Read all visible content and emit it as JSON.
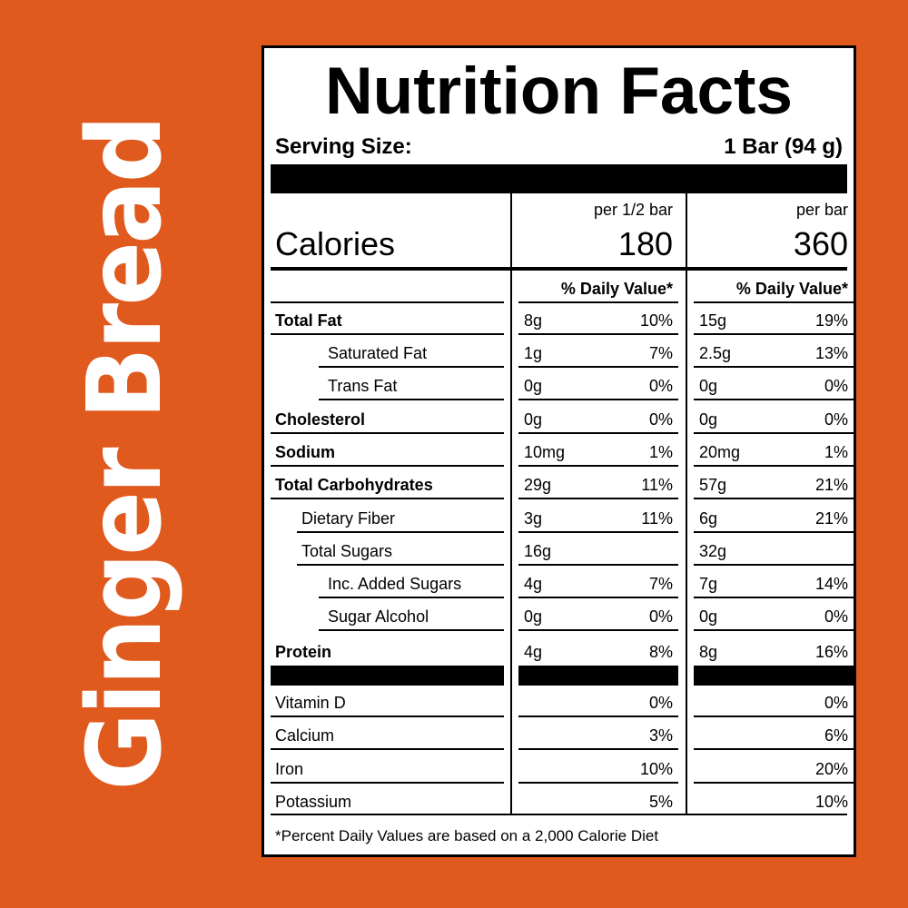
{
  "product_name": "Ginger Bread",
  "colors": {
    "background": "#E0591D",
    "brand_text": "#FFFFFF"
  },
  "label": {
    "title": "Nutrition Facts",
    "serving_label": "Serving Size:",
    "serving_value": "1 Bar (94 g)",
    "calories_label": "Calories",
    "col1_caption": "per 1/2 bar",
    "col2_caption": "per bar",
    "col1_calories": "180",
    "col2_calories": "360",
    "dv_header": "% Daily Value*",
    "rows": [
      {
        "name": "Total Fat",
        "a_amt": "8g",
        "a_dv": "10%",
        "b_amt": "15g",
        "b_dv": "19%"
      },
      {
        "name": "Saturated Fat",
        "a_amt": "1g",
        "a_dv": "7%",
        "b_amt": "2.5g",
        "b_dv": "13%"
      },
      {
        "name": "Trans Fat",
        "a_amt": "0g",
        "a_dv": "0%",
        "b_amt": "0g",
        "b_dv": "0%"
      },
      {
        "name": "Cholesterol",
        "a_amt": "0g",
        "a_dv": "0%",
        "b_amt": "0g",
        "b_dv": "0%"
      },
      {
        "name": "Sodium",
        "a_amt": "10mg",
        "a_dv": "1%",
        "b_amt": "20mg",
        "b_dv": "1%"
      },
      {
        "name": "Total Carbohydrates",
        "a_amt": "29g",
        "a_dv": "11%",
        "b_amt": "57g",
        "b_dv": "21%"
      },
      {
        "name": "Dietary Fiber",
        "a_amt": "3g",
        "a_dv": "11%",
        "b_amt": "6g",
        "b_dv": "21%"
      },
      {
        "name": "Total Sugars",
        "a_amt": "16g",
        "a_dv": "",
        "b_amt": "32g",
        "b_dv": ""
      },
      {
        "name": "Inc. Added Sugars",
        "a_amt": "4g",
        "a_dv": "7%",
        "b_amt": "7g",
        "b_dv": "14%"
      },
      {
        "name": "Sugar Alcohol",
        "a_amt": "0g",
        "a_dv": "0%",
        "b_amt": "0g",
        "b_dv": "0%"
      },
      {
        "name": "Protein",
        "a_amt": "4g",
        "a_dv": "8%",
        "b_amt": "8g",
        "b_dv": "16%"
      }
    ],
    "vitamins": [
      {
        "name": "Vitamin D",
        "a_dv": "0%",
        "b_dv": "0%"
      },
      {
        "name": "Calcium",
        "a_dv": "3%",
        "b_dv": "6%"
      },
      {
        "name": "Iron",
        "a_dv": "10%",
        "b_dv": "20%"
      },
      {
        "name": "Potassium",
        "a_dv": "5%",
        "b_dv": "10%"
      }
    ],
    "footnote": "*Percent Daily Values are based on a 2,000 Calorie Diet"
  }
}
